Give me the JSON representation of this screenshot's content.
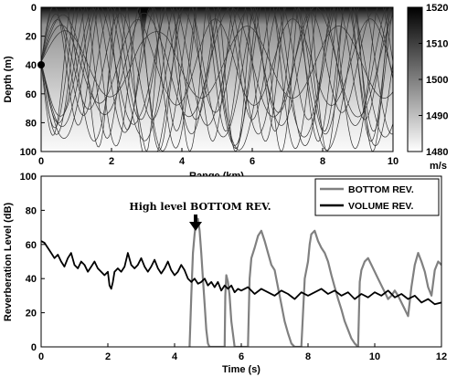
{
  "chart_data": [
    {
      "type": "heatmap",
      "title": "",
      "xlabel": "Range (km)",
      "ylabel": "Depth (m)",
      "xlim": [
        0,
        10
      ],
      "ylim": [
        100,
        0
      ],
      "x_ticks": [
        "0",
        "2",
        "4",
        "6",
        "8",
        "10"
      ],
      "y_ticks": [
        "0",
        "20",
        "40",
        "60",
        "80",
        "100"
      ],
      "colorbar": {
        "range": [
          1480,
          1520
        ],
        "ticks": [
          "1520",
          "1510",
          "1500",
          "1490",
          "1480"
        ],
        "unit_label": "m/s",
        "colormap": "gray-reversed"
      },
      "source": {
        "range_km": 0,
        "depth_m": 38
      },
      "warm_plume": {
        "range_km": 3.0,
        "depth_bottom_m": 18
      },
      "rays_periods_km": [
        1.3,
        1.4,
        1.5,
        1.6,
        1.7,
        1.8,
        1.9,
        2.0,
        2.1,
        2.2,
        2.3,
        2.4,
        2.5,
        2.6
      ],
      "rays_amplitudes_m": [
        62,
        48,
        55,
        40,
        60,
        35,
        50,
        58,
        44,
        30,
        52,
        38,
        61,
        25
      ],
      "ray_color": "#333333"
    },
    {
      "type": "line",
      "title": "",
      "xlabel": "Time (s)",
      "ylabel": "Reverberation Level (dB)",
      "xlim": [
        0,
        12
      ],
      "ylim": [
        0,
        100
      ],
      "x_ticks": [
        "0",
        "2",
        "4",
        "6",
        "8",
        "10",
        "12"
      ],
      "y_ticks": [
        "0",
        "20",
        "40",
        "60",
        "80",
        "100"
      ],
      "legend": "top-right",
      "annotation": {
        "text": "High level BOTTOM REV.",
        "x": 4.7,
        "y": 80
      },
      "series": [
        {
          "name": "BOTTOM REV.",
          "color": "#808080",
          "x": [
            4.45,
            4.5,
            4.55,
            4.6,
            4.65,
            4.7,
            4.75,
            4.8,
            4.85,
            4.9,
            4.95,
            5.0,
            5.05,
            5.5,
            5.52,
            5.55,
            5.6,
            5.65,
            5.7,
            5.8,
            6.2,
            6.25,
            6.3,
            6.4,
            6.5,
            6.6,
            6.7,
            6.8,
            6.9,
            7.0,
            7.1,
            7.2,
            7.3,
            7.4,
            7.5,
            7.6,
            7.7,
            7.8,
            7.9,
            8.0,
            8.05,
            8.1,
            8.2,
            8.3,
            8.4,
            8.5,
            8.6,
            8.7,
            8.8,
            8.9,
            9.0,
            9.1,
            9.2,
            9.3,
            9.4,
            9.5,
            9.55,
            9.6,
            9.7,
            9.8,
            9.9,
            10.0,
            10.1,
            10.2,
            10.3,
            10.4,
            10.5,
            10.6,
            10.7,
            10.8,
            10.9,
            11.0,
            11.1,
            11.2,
            11.3,
            11.4,
            11.5,
            11.6,
            11.7,
            11.8,
            11.9,
            12.0
          ],
          "values": [
            0,
            30,
            55,
            66,
            74,
            75,
            68,
            55,
            40,
            25,
            10,
            2,
            0,
            0,
            30,
            42,
            38,
            30,
            15,
            0,
            0,
            40,
            52,
            58,
            65,
            68,
            62,
            55,
            48,
            45,
            35,
            25,
            15,
            8,
            2,
            0,
            0,
            0,
            40,
            50,
            60,
            66,
            68,
            62,
            58,
            55,
            50,
            42,
            35,
            28,
            22,
            15,
            10,
            5,
            2,
            0,
            38,
            45,
            50,
            52,
            48,
            44,
            40,
            36,
            32,
            28,
            30,
            33,
            30,
            26,
            22,
            18,
            35,
            48,
            55,
            50,
            44,
            35,
            30,
            45,
            50,
            48
          ]
        },
        {
          "name": "VOLUME REV.",
          "color": "#000000",
          "x": [
            0,
            0.1,
            0.2,
            0.3,
            0.4,
            0.5,
            0.6,
            0.7,
            0.8,
            0.9,
            1.0,
            1.1,
            1.2,
            1.3,
            1.4,
            1.5,
            1.6,
            1.7,
            1.8,
            1.9,
            2.0,
            2.05,
            2.1,
            2.15,
            2.2,
            2.3,
            2.4,
            2.5,
            2.6,
            2.7,
            2.8,
            2.9,
            3.0,
            3.1,
            3.2,
            3.3,
            3.4,
            3.5,
            3.6,
            3.7,
            3.8,
            3.9,
            4.0,
            4.1,
            4.2,
            4.3,
            4.4,
            4.5,
            4.6,
            4.7,
            4.8,
            4.9,
            5.0,
            5.1,
            5.2,
            5.3,
            5.4,
            5.5,
            5.6,
            5.7,
            5.8,
            5.9,
            6.0,
            6.2,
            6.4,
            6.6,
            6.8,
            7.0,
            7.2,
            7.4,
            7.6,
            7.8,
            8.0,
            8.2,
            8.4,
            8.6,
            8.8,
            9.0,
            9.2,
            9.4,
            9.6,
            9.8,
            10.0,
            10.2,
            10.4,
            10.6,
            10.8,
            11.0,
            11.2,
            11.4,
            11.6,
            11.8,
            12.0
          ],
          "values": [
            62,
            61,
            58,
            55,
            52,
            54,
            50,
            47,
            52,
            55,
            48,
            46,
            50,
            48,
            44,
            47,
            50,
            46,
            44,
            42,
            44,
            36,
            34,
            38,
            44,
            46,
            44,
            47,
            55,
            48,
            46,
            48,
            52,
            47,
            44,
            47,
            51,
            46,
            43,
            46,
            50,
            45,
            42,
            44,
            48,
            45,
            40,
            38,
            40,
            37,
            38,
            40,
            36,
            38,
            35,
            38,
            33,
            36,
            34,
            36,
            32,
            34,
            33,
            35,
            31,
            34,
            32,
            30,
            33,
            31,
            28,
            32,
            30,
            32,
            34,
            31,
            33,
            30,
            32,
            28,
            31,
            29,
            32,
            30,
            33,
            29,
            31,
            28,
            30,
            26,
            28,
            25,
            26
          ]
        }
      ]
    }
  ]
}
